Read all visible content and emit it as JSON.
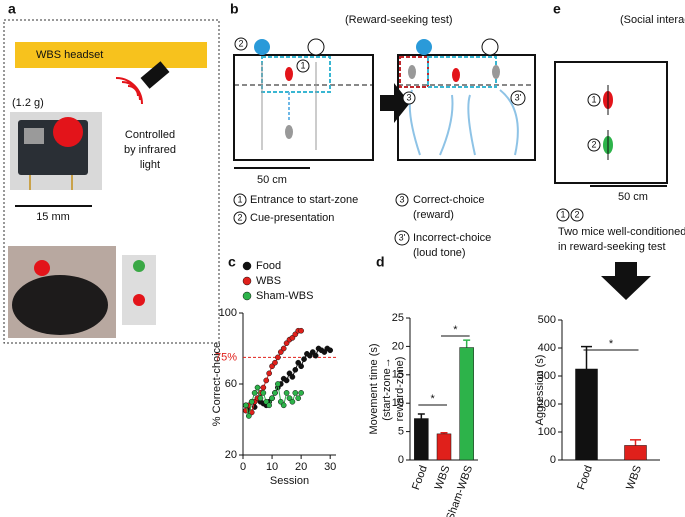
{
  "panels": {
    "a": {
      "letter": "a",
      "headset": "WBS headset",
      "weight": "(1.2 g)",
      "control": [
        "Controlled",
        "by infrared",
        "light"
      ],
      "scale": "15 mm"
    },
    "b": {
      "letter": "b",
      "title": "(Reward-seeking test)",
      "scale": "50 cm",
      "markers": [
        "1",
        "2",
        "3",
        "3'"
      ],
      "legend": [
        "Entrance to start-zone",
        "Cue-presentation",
        [
          "Correct-choice",
          "(reward)"
        ],
        [
          "Incorrect-choice",
          "(loud tone)"
        ]
      ]
    },
    "e": {
      "letter": "e",
      "title": "(Social interaction)",
      "scale": "50 cm",
      "markers": [
        "1",
        "2"
      ],
      "note": [
        "Two mice well-conditioned",
        "in reward-seeking test"
      ]
    }
  },
  "chart_data": [
    {
      "type": "line",
      "letter": "c",
      "ylabel": "% Correct-choice",
      "xlabel": "Session",
      "x": [
        1,
        2,
        3,
        4,
        5,
        6,
        7,
        8,
        9,
        10,
        11,
        12,
        13,
        14,
        15,
        16,
        17,
        18,
        19,
        20,
        21,
        22,
        23,
        24,
        25,
        26,
        27,
        28,
        29,
        30
      ],
      "xlim": [
        0,
        32
      ],
      "xticks": [
        0,
        10,
        20,
        30
      ],
      "ylim": [
        20,
        100
      ],
      "yticks": [
        20,
        60,
        100
      ],
      "annotation": {
        "text": "75%",
        "value": 75,
        "color": "#e0201b"
      },
      "series": [
        {
          "name": "Food",
          "color": "#111111",
          "values": [
            48,
            45,
            50,
            47,
            52,
            50,
            49,
            48,
            50,
            52,
            55,
            58,
            60,
            63,
            62,
            66,
            64,
            68,
            72,
            70,
            74,
            77,
            76,
            78,
            76,
            80,
            79,
            78,
            80,
            79
          ]
        },
        {
          "name": "WBS",
          "color": "#e0201b",
          "values": [
            45,
            48,
            44,
            50,
            52,
            55,
            58,
            62,
            66,
            70,
            72,
            75,
            78,
            80,
            83,
            85,
            86,
            88,
            90,
            90,
            null,
            null,
            null,
            null,
            null,
            null,
            null,
            null,
            null,
            null
          ]
        },
        {
          "name": "Sham-WBS",
          "color": "#2db34a",
          "values": [
            48,
            42,
            50,
            55,
            58,
            52,
            55,
            50,
            48,
            52,
            55,
            60,
            50,
            48,
            55,
            52,
            50,
            55,
            52,
            55,
            null,
            null,
            null,
            null,
            null,
            null,
            null,
            null,
            null,
            null
          ]
        }
      ]
    },
    {
      "type": "bar",
      "letter": "d",
      "ylabel": [
        "Movement time (s)",
        "(start-zone→",
        "reward-zone)"
      ],
      "categories": [
        "Food",
        "WBS",
        "Sham-WBS"
      ],
      "values": [
        7.3,
        4.6,
        19.8
      ],
      "errors": [
        0.8,
        0.2,
        1.3
      ],
      "colors": [
        "#111111",
        "#e0201b",
        "#2db34a"
      ],
      "ylim": [
        0,
        25
      ],
      "yticks": [
        0,
        5,
        10,
        15,
        20,
        25
      ],
      "significance": [
        "*",
        "*"
      ]
    },
    {
      "type": "bar",
      "ylabel": [
        "Aggression (s)"
      ],
      "categories": [
        "Food",
        "WBS"
      ],
      "values": [
        325,
        52
      ],
      "errors": [
        80,
        20
      ],
      "colors": [
        "#111111",
        "#e0201b"
      ],
      "ylim": [
        0,
        500
      ],
      "yticks": [
        0,
        100,
        200,
        300,
        400,
        500
      ],
      "significance": [
        "*"
      ]
    }
  ]
}
